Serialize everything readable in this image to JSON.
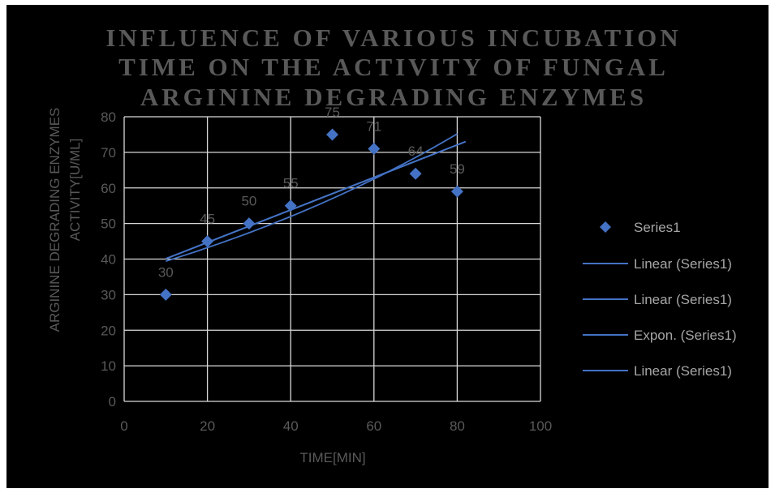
{
  "chart_data": {
    "type": "scatter",
    "title_lines": [
      "INFLUENCE OF VARIOUS INCUBATION",
      "TIME ON THE ACTIVITY OF FUNGAL",
      "ARGININE DEGRADING ENZYMES"
    ],
    "xlabel": "TIME[MIN]",
    "ylabel_lines": [
      "ARGININE DEGRADING ENZYMES",
      "ACTIVITY[U/ML]"
    ],
    "xlim": [
      0,
      100
    ],
    "ylim": [
      0,
      80
    ],
    "x_ticks": [
      0,
      20,
      40,
      60,
      80,
      100
    ],
    "y_ticks": [
      0,
      10,
      20,
      30,
      40,
      50,
      60,
      70,
      80
    ],
    "grid": true,
    "legend_position": "right",
    "marker_color": "#4472c4",
    "line_color": "#4472c4",
    "series": [
      {
        "name": "Series1",
        "x": [
          10,
          20,
          30,
          40,
          50,
          60,
          70,
          80
        ],
        "y": [
          30,
          45,
          50,
          55,
          75,
          71,
          64,
          59
        ],
        "data_labels": [
          "30",
          "45",
          "50",
          "55",
          "75",
          "71",
          "64",
          "59"
        ]
      }
    ],
    "trendlines": [
      {
        "name": "Linear (Series1)",
        "type": "linear",
        "x_range": [
          10,
          82
        ],
        "y_range": [
          40.1,
          73.0
        ]
      },
      {
        "name": "Linear (Series1)",
        "type": "linear",
        "x_range": [
          10,
          82
        ],
        "y_range": [
          40.1,
          73.0
        ]
      },
      {
        "name": "Expon. (Series1)",
        "type": "exponential",
        "x_range": [
          10,
          80
        ],
        "y_range": [
          39.4,
          75.2
        ]
      },
      {
        "name": "Linear (Series1)",
        "type": "linear",
        "x_range": [
          10,
          82
        ],
        "y_range": [
          40.1,
          73.0
        ]
      }
    ]
  }
}
